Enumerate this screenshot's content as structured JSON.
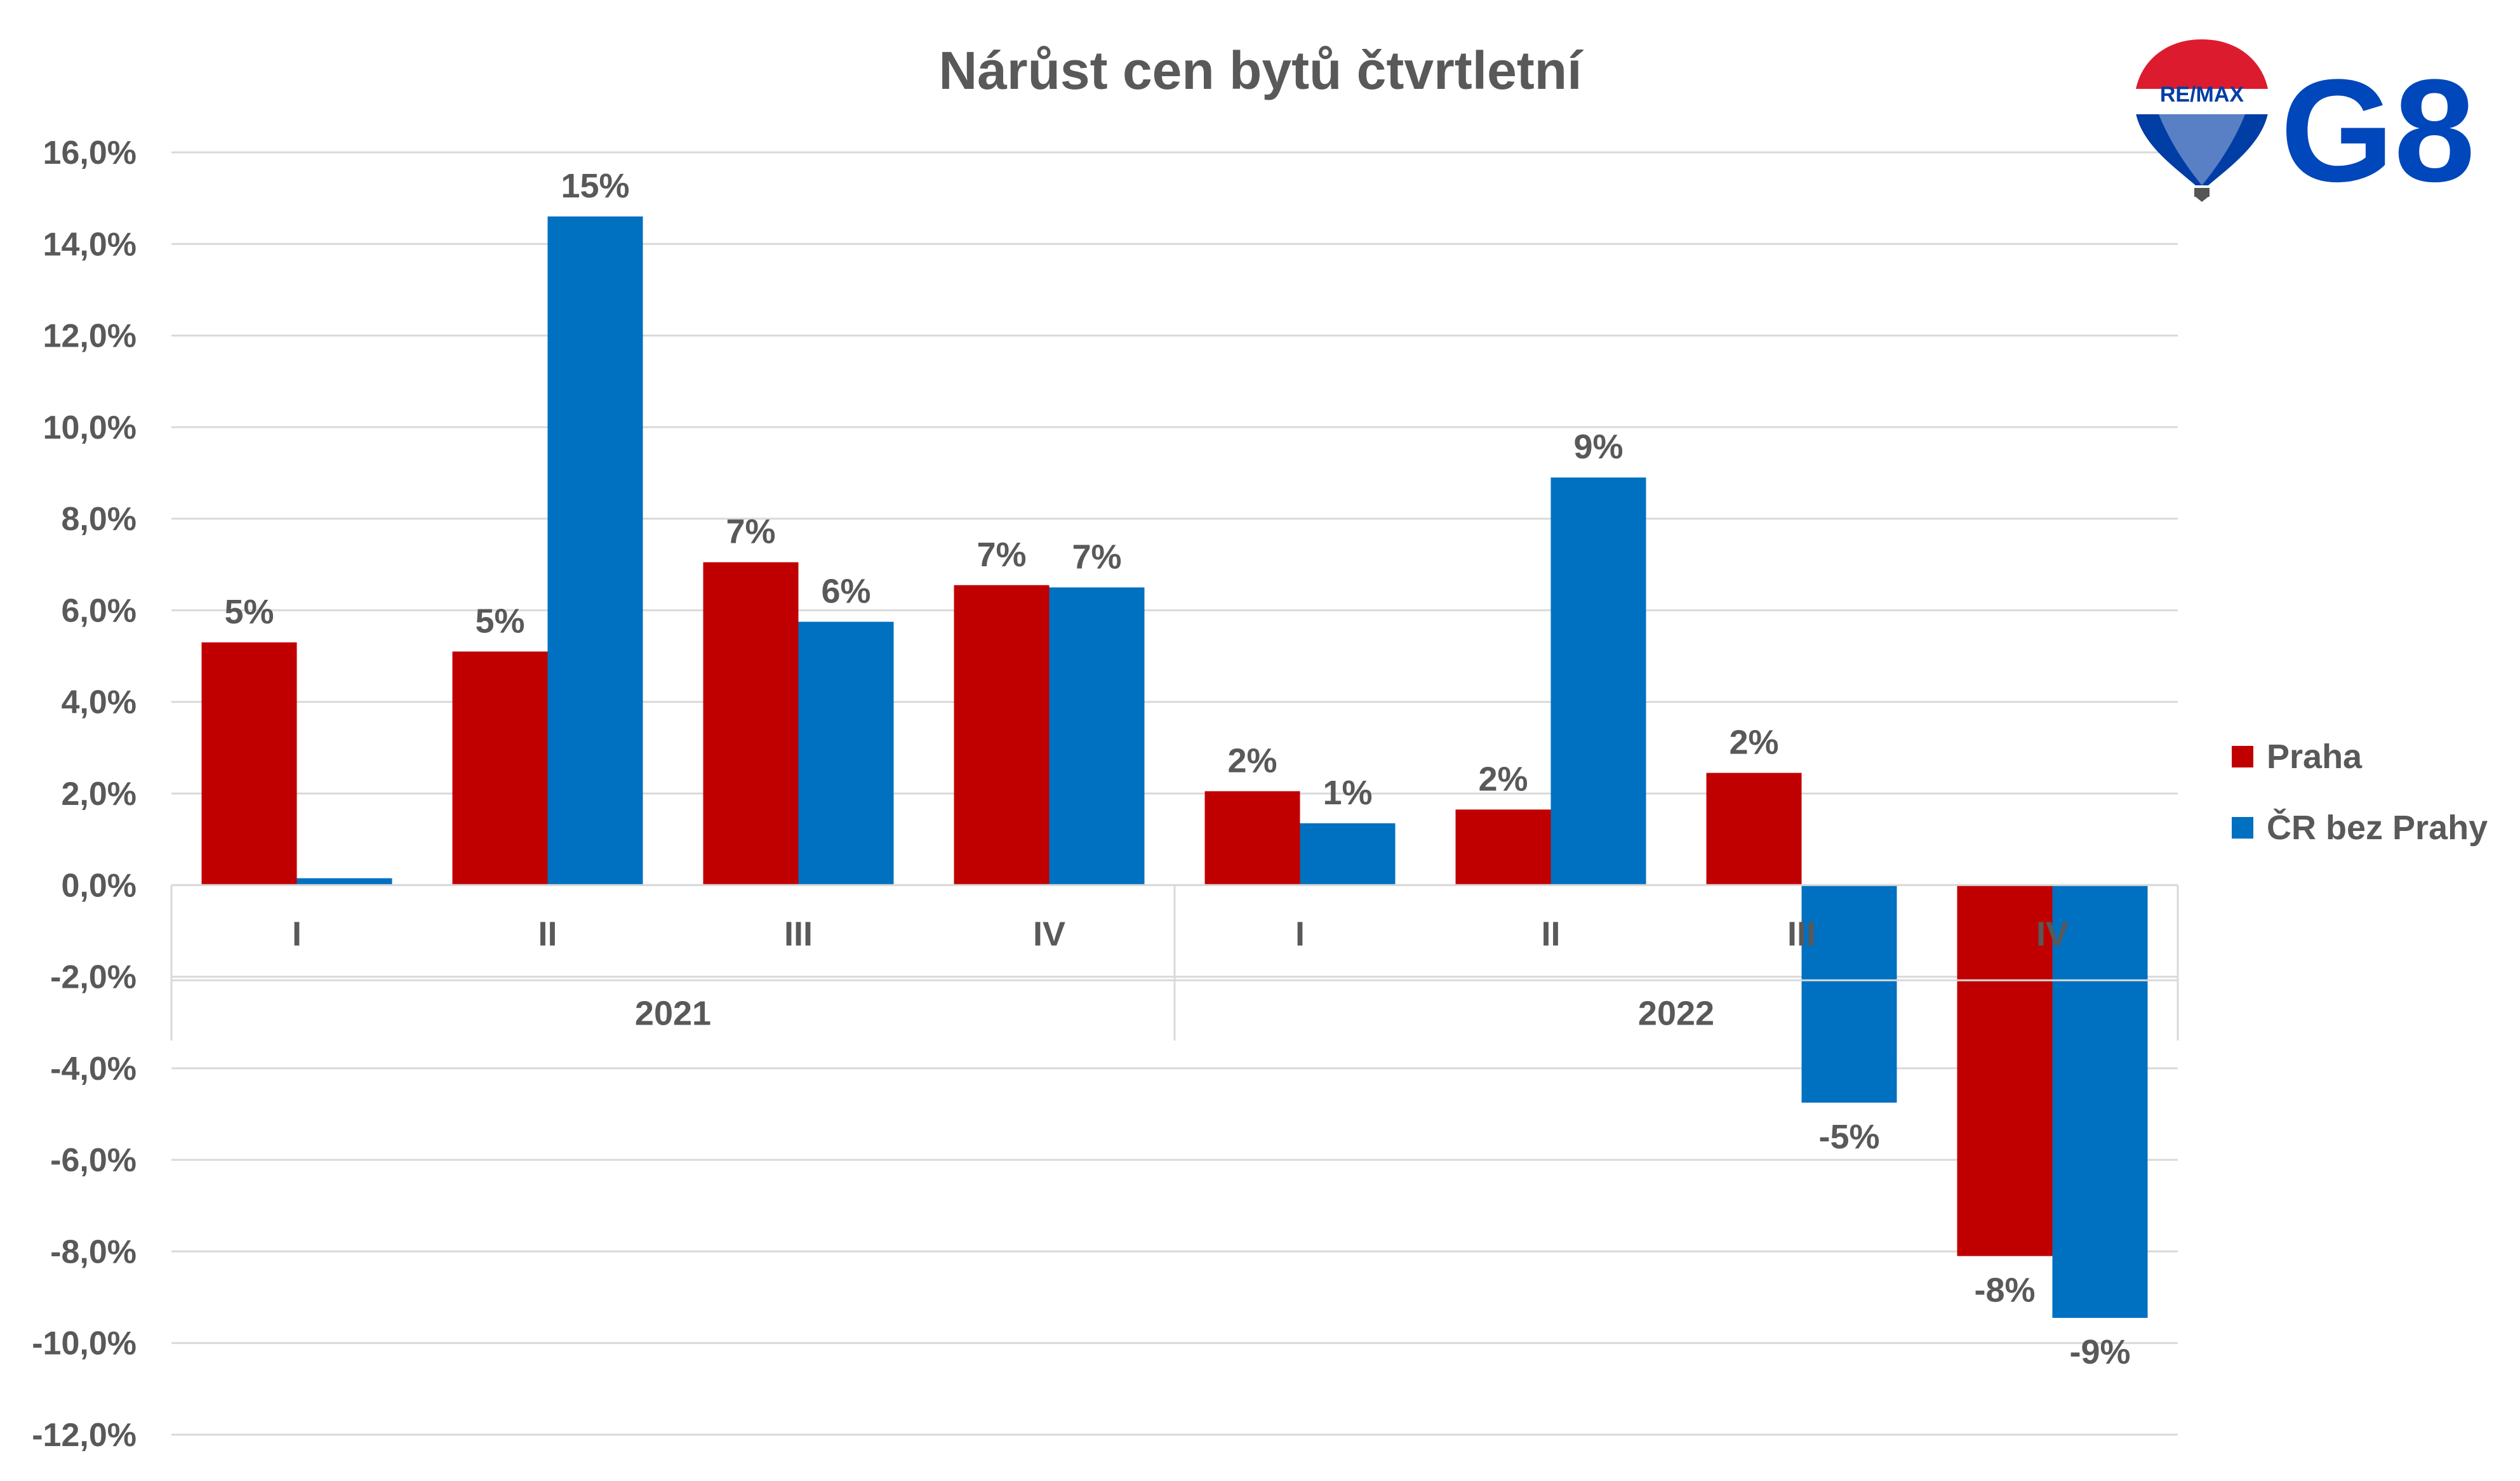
{
  "colors": {
    "praha": "#c00000",
    "cr": "#0070c0",
    "grid": "#d9d9d9",
    "text": "#595959"
  },
  "logos": {
    "remax_text": "RE/MAX",
    "g8_text": "G8"
  },
  "chart_data": {
    "type": "bar",
    "title": "Nárůst cen bytů čtvrtletní",
    "groups": [
      {
        "name": "2021",
        "categories": [
          "I",
          "II",
          "III",
          "IV"
        ]
      },
      {
        "name": "2022",
        "categories": [
          "I",
          "II",
          "III",
          "IV"
        ]
      }
    ],
    "categories": [
      "I",
      "II",
      "III",
      "IV",
      "I",
      "II",
      "III",
      "IV"
    ],
    "series": [
      {
        "name": "Praha",
        "color": "#c00000",
        "values": [
          5.3,
          5.1,
          7.05,
          6.55,
          2.05,
          1.65,
          2.45,
          -8.1
        ],
        "labels": [
          "5%",
          "5%",
          "7%",
          "7%",
          "2%",
          "2%",
          "2%",
          "-8%"
        ]
      },
      {
        "name": "ČR bez Prahy",
        "color": "#0070c0",
        "values": [
          0.15,
          14.6,
          5.75,
          6.5,
          1.35,
          8.9,
          -4.75,
          -9.45
        ],
        "labels": [
          "",
          "15%",
          "6%",
          "7%",
          "1%",
          "9%",
          "-5%",
          "-9%"
        ]
      }
    ],
    "ylim": [
      -12,
      16
    ],
    "yticks": [
      16,
      14,
      12,
      10,
      8,
      6,
      4,
      2,
      0,
      -2,
      -4,
      -6,
      -8,
      -10,
      -12
    ],
    "ytick_labels": [
      "16,0%",
      "14,0%",
      "12,0%",
      "10,0%",
      "8,0%",
      "6,0%",
      "4,0%",
      "2,0%",
      "0,0%",
      "-2,0%",
      "-4,0%",
      "-6,0%",
      "-8,0%",
      "-10,0%",
      "-12,0%"
    ],
    "grid": true,
    "legend": "right"
  }
}
